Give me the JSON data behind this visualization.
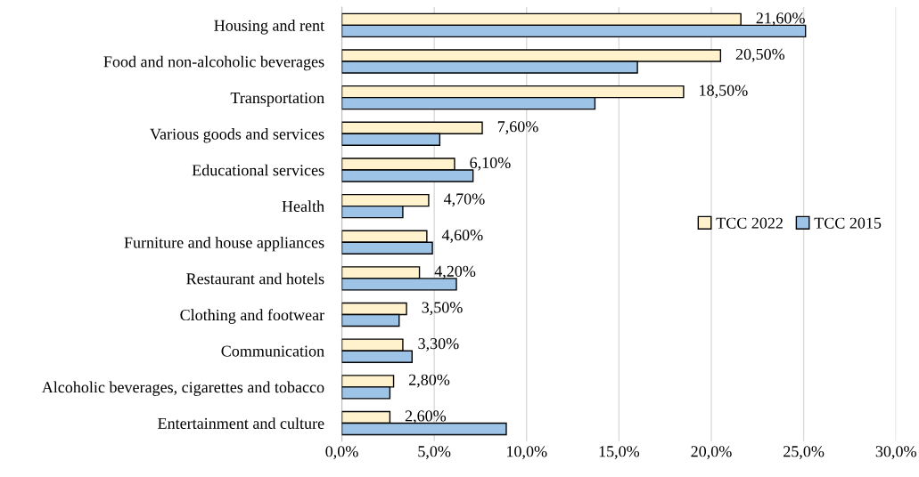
{
  "chart_data": {
    "type": "bar",
    "orientation": "horizontal",
    "categories": [
      "Housing and rent",
      "Food and non-alcoholic beverages",
      "Transportation",
      "Various goods and services",
      "Educational services",
      "Health",
      "Furniture and house appliances",
      "Restaurant and hotels",
      "Clothing and footwear",
      "Communication",
      "Alcoholic beverages, cigarettes and tobacco",
      "Entertainment and culture"
    ],
    "series": [
      {
        "name": "TCC 2022",
        "color": "#fff2cc",
        "values": [
          21.6,
          20.5,
          18.5,
          7.6,
          6.1,
          4.7,
          4.6,
          4.2,
          3.5,
          3.3,
          2.8,
          2.6
        ],
        "value_labels": [
          "21,60%",
          "20,50%",
          "18,50%",
          "7,60%",
          "6,10%",
          "4,70%",
          "4,60%",
          "4,20%",
          "3,50%",
          "3,30%",
          "2,80%",
          "2,60%"
        ]
      },
      {
        "name": "TCC 2015",
        "color": "#9dc3e6",
        "values": [
          25.1,
          16.0,
          13.7,
          5.3,
          7.1,
          3.3,
          4.9,
          6.2,
          3.1,
          3.8,
          2.6,
          8.9
        ]
      }
    ],
    "xlim": [
      0,
      30
    ],
    "xticks": [
      {
        "value": 0,
        "label": "0,0%"
      },
      {
        "value": 5,
        "label": "5,0%"
      },
      {
        "value": 10,
        "label": "10,0%"
      },
      {
        "value": 15,
        "label": "15,0%"
      },
      {
        "value": 20,
        "label": "20,0%"
      },
      {
        "value": 25,
        "label": "25,0%"
      },
      {
        "value": 30,
        "label": "30,0%"
      }
    ],
    "grid": "x",
    "legend": "right"
  }
}
